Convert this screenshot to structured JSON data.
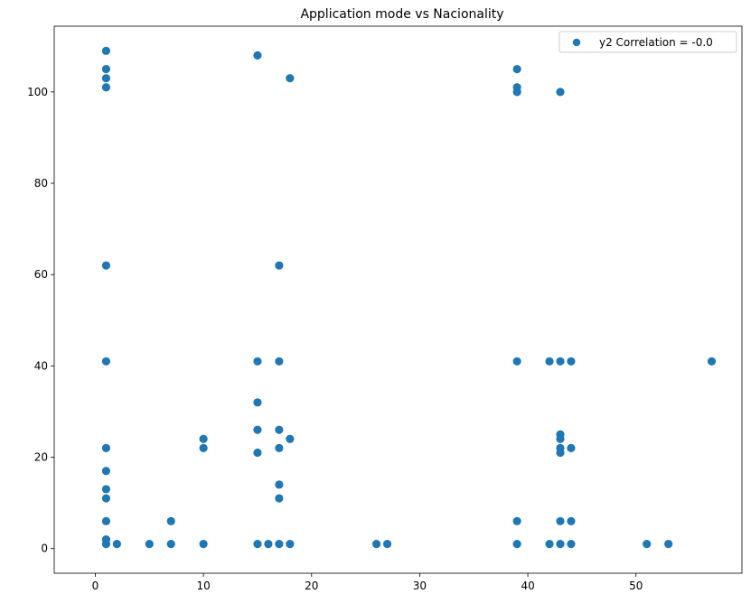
{
  "chart_data": {
    "type": "scatter",
    "title": "Application mode vs Nacionality",
    "xlabel": "",
    "ylabel": "",
    "xlim": [
      -3.8,
      59.8
    ],
    "ylim": [
      -5.4,
      114.4
    ],
    "xticks": [
      0,
      10,
      20,
      30,
      40,
      50
    ],
    "yticks": [
      0,
      20,
      40,
      60,
      80,
      100
    ],
    "grid": false,
    "legend": "top-right",
    "series": [
      {
        "name": "y2 Correlation = -0.0",
        "color": "#1f77b4",
        "points": [
          [
            1,
            109
          ],
          [
            1,
            105
          ],
          [
            1,
            103
          ],
          [
            1,
            101
          ],
          [
            1,
            62
          ],
          [
            1,
            41
          ],
          [
            1,
            22
          ],
          [
            1,
            17
          ],
          [
            1,
            13
          ],
          [
            1,
            11
          ],
          [
            1,
            6
          ],
          [
            1,
            2
          ],
          [
            1,
            1
          ],
          [
            2,
            1
          ],
          [
            5,
            1
          ],
          [
            7,
            6
          ],
          [
            7,
            1
          ],
          [
            10,
            24
          ],
          [
            10,
            22
          ],
          [
            10,
            1
          ],
          [
            15,
            108
          ],
          [
            15,
            41
          ],
          [
            15,
            32
          ],
          [
            15,
            26
          ],
          [
            15,
            21
          ],
          [
            15,
            1
          ],
          [
            16,
            1
          ],
          [
            17,
            62
          ],
          [
            17,
            41
          ],
          [
            17,
            26
          ],
          [
            17,
            22
          ],
          [
            17,
            14
          ],
          [
            17,
            11
          ],
          [
            17,
            1
          ],
          [
            18,
            103
          ],
          [
            18,
            24
          ],
          [
            18,
            1
          ],
          [
            26,
            1
          ],
          [
            27,
            1
          ],
          [
            39,
            105
          ],
          [
            39,
            101
          ],
          [
            39,
            100
          ],
          [
            39,
            41
          ],
          [
            39,
            6
          ],
          [
            39,
            1
          ],
          [
            42,
            41
          ],
          [
            42,
            1
          ],
          [
            43,
            100
          ],
          [
            43,
            41
          ],
          [
            43,
            25
          ],
          [
            43,
            24
          ],
          [
            43,
            22
          ],
          [
            43,
            21
          ],
          [
            43,
            6
          ],
          [
            43,
            1
          ],
          [
            44,
            41
          ],
          [
            44,
            22
          ],
          [
            44,
            6
          ],
          [
            44,
            1
          ],
          [
            51,
            1
          ],
          [
            53,
            1
          ],
          [
            57,
            41
          ]
        ]
      }
    ]
  }
}
